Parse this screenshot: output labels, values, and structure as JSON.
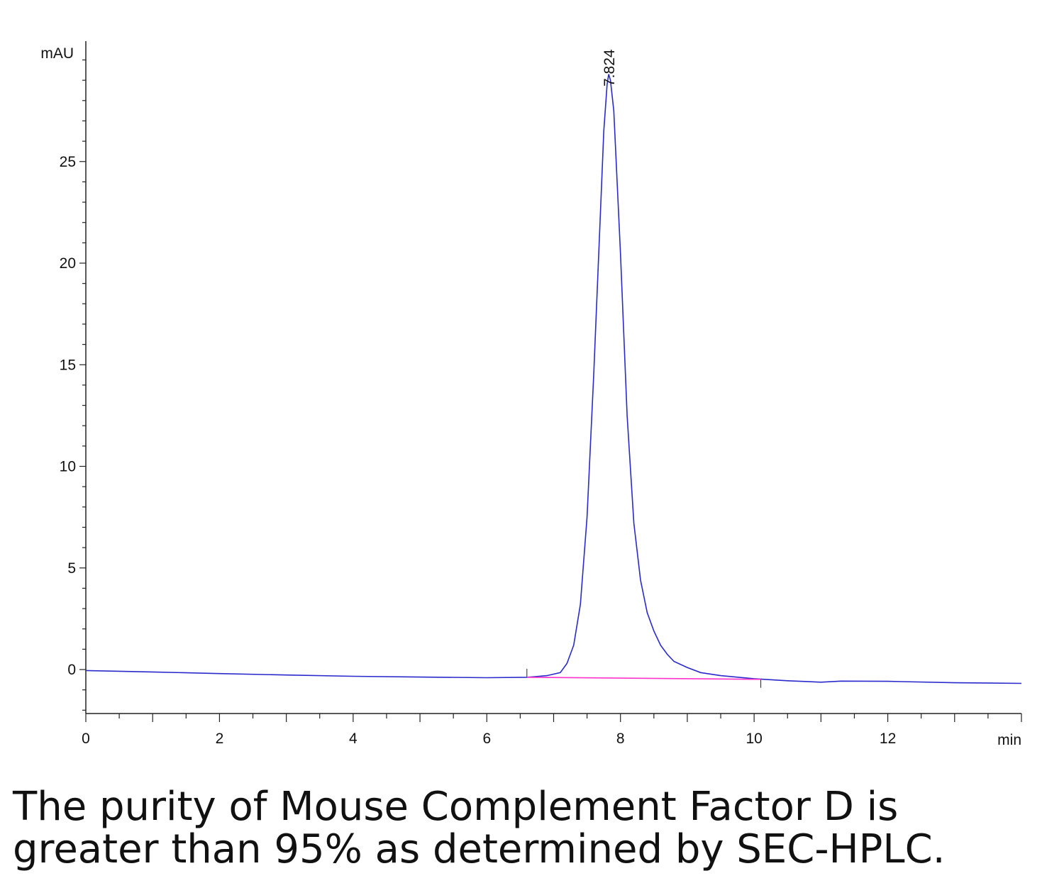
{
  "chart_data": {
    "type": "line",
    "title": "",
    "xlabel": "min",
    "ylabel": "mAU",
    "xlim": [
      0,
      14
    ],
    "ylim": [
      -2,
      31
    ],
    "x_ticks": [
      0,
      2,
      4,
      6,
      8,
      10,
      12
    ],
    "y_ticks": [
      0,
      5,
      10,
      15,
      20,
      25
    ],
    "peak_label": "7.824",
    "grid": false,
    "series": [
      {
        "color": "#2a2acc",
        "points": [
          [
            0,
            -0.05
          ],
          [
            1,
            -0.12
          ],
          [
            2,
            -0.2
          ],
          [
            3,
            -0.27
          ],
          [
            4,
            -0.33
          ],
          [
            5,
            -0.37
          ],
          [
            6,
            -0.4
          ],
          [
            6.6,
            -0.38
          ],
          [
            6.9,
            -0.3
          ],
          [
            7.1,
            -0.15
          ],
          [
            7.2,
            0.3
          ],
          [
            7.3,
            1.2
          ],
          [
            7.4,
            3.2
          ],
          [
            7.5,
            7.5
          ],
          [
            7.6,
            14.5
          ],
          [
            7.7,
            22.5
          ],
          [
            7.75,
            26.5
          ],
          [
            7.8,
            28.8
          ],
          [
            7.824,
            29.3
          ],
          [
            7.85,
            29.0
          ],
          [
            7.9,
            27.5
          ],
          [
            8.0,
            20.5
          ],
          [
            8.1,
            12.5
          ],
          [
            8.2,
            7.2
          ],
          [
            8.3,
            4.4
          ],
          [
            8.4,
            2.8
          ],
          [
            8.5,
            1.9
          ],
          [
            8.6,
            1.2
          ],
          [
            8.7,
            0.75
          ],
          [
            8.8,
            0.4
          ],
          [
            9.0,
            0.1
          ],
          [
            9.2,
            -0.15
          ],
          [
            9.5,
            -0.3
          ],
          [
            10.0,
            -0.45
          ],
          [
            10.5,
            -0.55
          ],
          [
            11.0,
            -0.62
          ],
          [
            11.3,
            -0.57
          ],
          [
            12.0,
            -0.58
          ],
          [
            13.0,
            -0.65
          ],
          [
            14.0,
            -0.68
          ]
        ]
      },
      {
        "color": "#ff33cc",
        "points": [
          [
            6.6,
            -0.38
          ],
          [
            10.1,
            -0.48
          ]
        ]
      }
    ]
  },
  "caption": {
    "line1": "The purity of Mouse Complement Factor D is",
    "line2": "greater than 95% as determined by SEC-HPLC."
  }
}
